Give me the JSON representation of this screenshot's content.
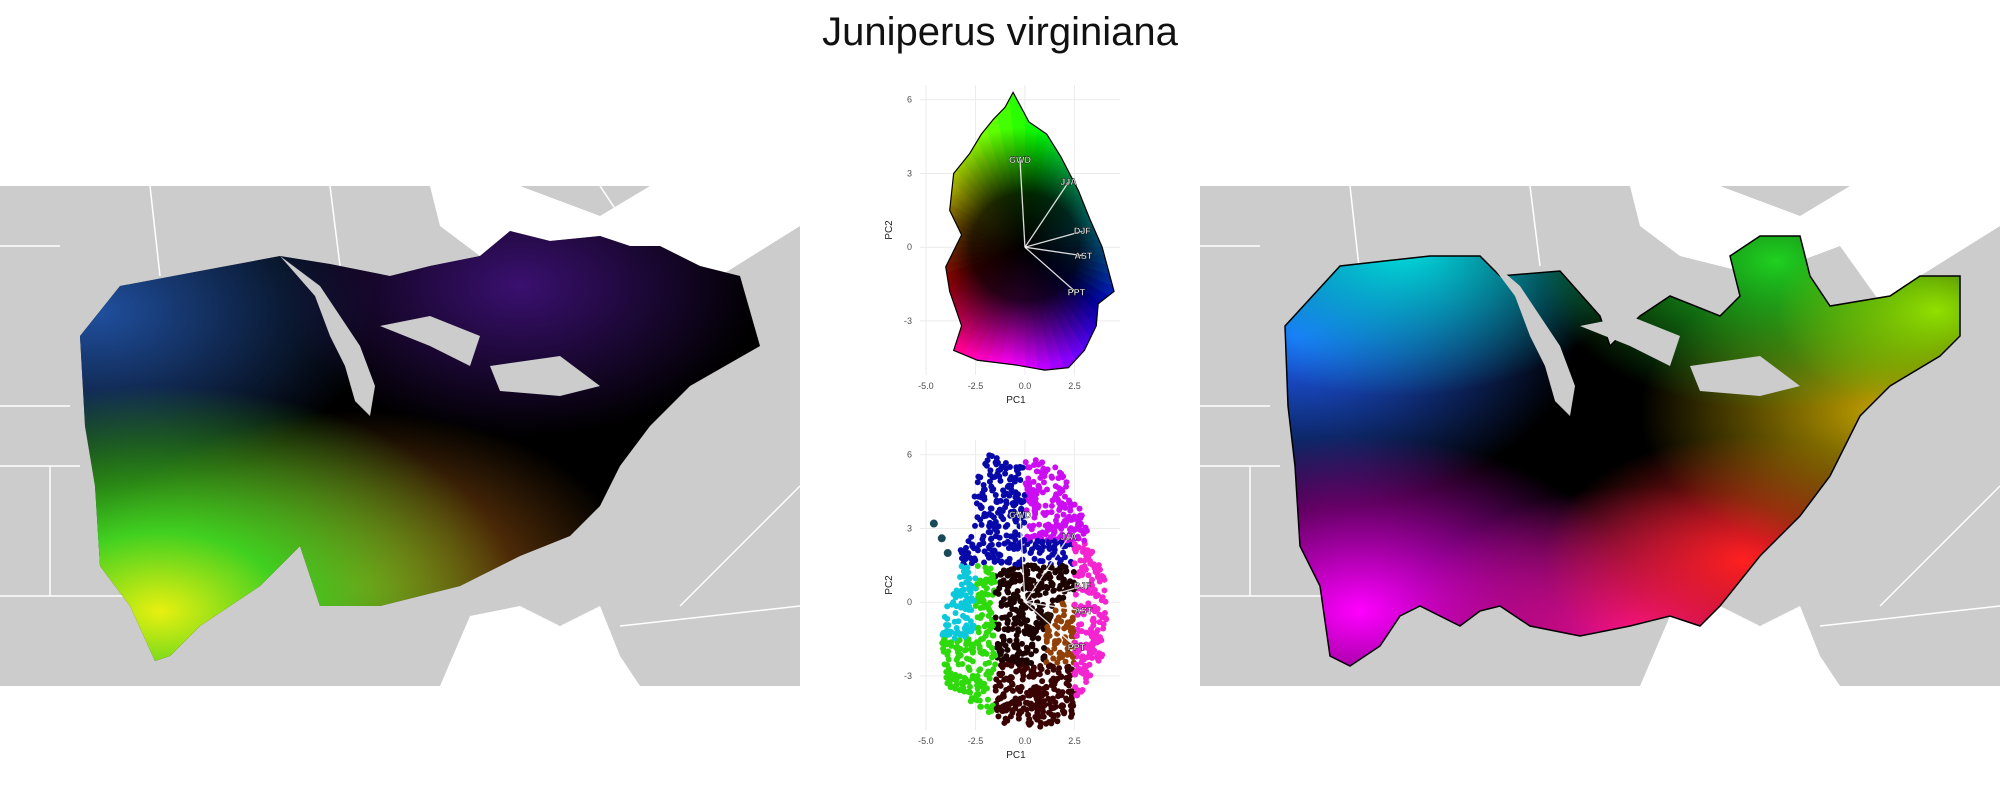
{
  "title": "Juniperus virginiana",
  "chart_data": [
    {
      "type": "scatter",
      "panel": "climate-pca-biplot-top",
      "xlabel": "PC1",
      "ylabel": "PC2",
      "xlim": [
        -5.3,
        4.8
      ],
      "ylim": [
        -5.2,
        6.6
      ],
      "xticks": [
        "-5.0",
        "-2.5",
        "0.0",
        "2.5"
      ],
      "yticks": [
        "-3",
        "0",
        "3",
        "6"
      ],
      "grid": true,
      "coloring": "continuous color wheel over PC space (black at center)",
      "hull": [
        [
          -3.2,
          0.5
        ],
        [
          -3.8,
          1.5
        ],
        [
          -3.6,
          3.0
        ],
        [
          -2.8,
          3.8
        ],
        [
          -2.2,
          4.6
        ],
        [
          -1.6,
          5.2
        ],
        [
          -1.0,
          5.7
        ],
        [
          -0.6,
          6.3
        ],
        [
          0.2,
          5.1
        ],
        [
          1.1,
          4.6
        ],
        [
          1.8,
          3.7
        ],
        [
          2.7,
          2.3
        ],
        [
          3.3,
          1.1
        ],
        [
          3.9,
          0.0
        ],
        [
          4.5,
          -1.8
        ],
        [
          3.7,
          -2.3
        ],
        [
          3.6,
          -3.2
        ],
        [
          3.0,
          -4.2
        ],
        [
          2.2,
          -4.9
        ],
        [
          1.0,
          -5.0
        ],
        [
          -0.4,
          -4.8
        ],
        [
          -2.4,
          -4.6
        ],
        [
          -3.6,
          -4.2
        ],
        [
          -3.2,
          -3.2
        ],
        [
          -3.8,
          -1.8
        ],
        [
          -4.0,
          -0.8
        ]
      ],
      "loadings": [
        {
          "label": "GWD",
          "x": -0.25,
          "y": 3.55
        },
        {
          "label": "JJA",
          "x": 2.2,
          "y": 2.65
        },
        {
          "label": "DJF",
          "x": 2.9,
          "y": 0.65
        },
        {
          "label": "AST",
          "x": 2.95,
          "y": -0.35
        },
        {
          "label": "PPT",
          "x": 2.6,
          "y": -1.85
        }
      ]
    },
    {
      "type": "scatter",
      "panel": "climate-pca-biplot-bottom",
      "xlabel": "PC1",
      "ylabel": "PC2",
      "xlim": [
        -5.3,
        4.8
      ],
      "ylim": [
        -5.2,
        6.6
      ],
      "xticks": [
        "-5.0",
        "-2.5",
        "0.0",
        "2.5"
      ],
      "yticks": [
        "-3",
        "0",
        "3",
        "6"
      ],
      "grid": true,
      "coloring": "points colored by geographic position (map color)",
      "hull": [
        [
          -2.5,
          3.2
        ],
        [
          -2.6,
          4.8
        ],
        [
          -1.8,
          6.0
        ],
        [
          -0.5,
          5.6
        ],
        [
          0.5,
          5.8
        ],
        [
          1.6,
          5.6
        ],
        [
          2.6,
          4.2
        ],
        [
          3.4,
          2.3
        ],
        [
          4.2,
          0.5
        ],
        [
          4.1,
          -1.9
        ],
        [
          3.0,
          -3.5
        ],
        [
          2.4,
          -4.8
        ],
        [
          0.8,
          -5.1
        ],
        [
          -1.2,
          -4.9
        ],
        [
          -2.2,
          -4.4
        ],
        [
          -3.0,
          -4.0
        ],
        [
          -3.9,
          -3.5
        ],
        [
          -4.2,
          -1.8
        ],
        [
          -4.1,
          -0.4
        ],
        [
          -3.4,
          0.8
        ],
        [
          -3.3,
          2.2
        ]
      ],
      "extra_cluster": {
        "x": [
          -4.6,
          -4.2,
          -3.9
        ],
        "y": [
          3.2,
          2.6,
          2.0
        ]
      },
      "loadings": [
        {
          "label": "GWD",
          "x": -0.25,
          "y": 3.55
        },
        {
          "label": "JJA",
          "x": 2.2,
          "y": 2.65
        },
        {
          "label": "DJF",
          "x": 2.9,
          "y": 0.65
        },
        {
          "label": "AST",
          "x": 2.95,
          "y": -0.35
        },
        {
          "label": "PPT",
          "x": 2.6,
          "y": -1.85
        }
      ]
    }
  ],
  "maps": {
    "left": {
      "description_colors": [
        "#0a0a30",
        "#2a3a80",
        "#40d060",
        "#c8e020",
        "#d07020",
        "#c01080"
      ]
    },
    "right": {
      "description_colors": [
        "#00e0e0",
        "#2060ff",
        "#ff00ff",
        "#ff2020",
        "#20d020",
        "#a0e000"
      ]
    }
  },
  "colors": {
    "land": "#cccccc",
    "borders": "#ffffff",
    "grid": "#ebebeb",
    "axis_text": "#4d4d4d",
    "loading_line": "#ffffff",
    "hull_outline": "#000000"
  }
}
